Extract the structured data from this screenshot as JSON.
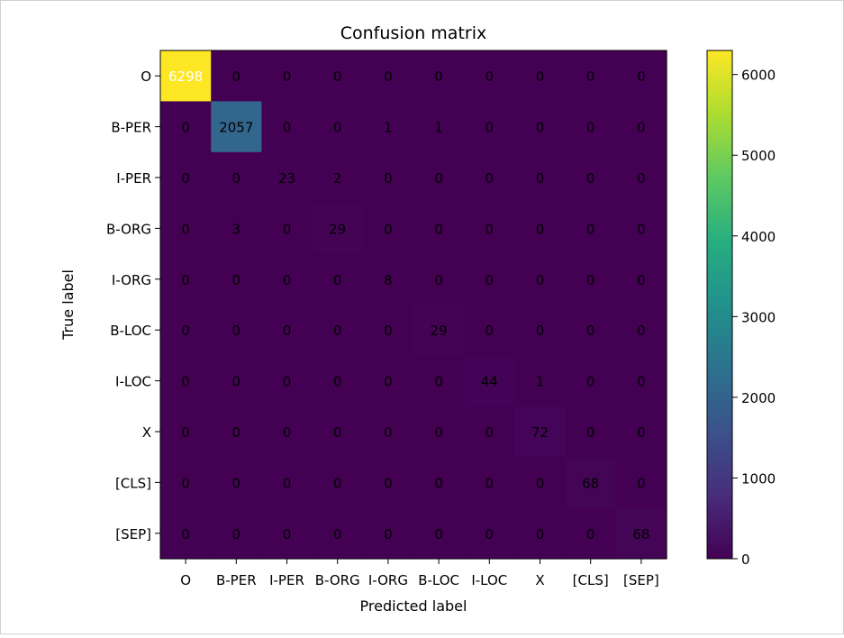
{
  "chart_data": {
    "type": "heatmap",
    "title": "Confusion matrix",
    "xlabel": "Predicted label",
    "ylabel": "True label",
    "labels": [
      "O",
      "B-PER",
      "I-PER",
      "B-ORG",
      "I-ORG",
      "B-LOC",
      "I-LOC",
      "X",
      "[CLS]",
      "[SEP]"
    ],
    "matrix": [
      [
        6298,
        0,
        0,
        0,
        0,
        0,
        0,
        0,
        0,
        0
      ],
      [
        0,
        2057,
        0,
        0,
        1,
        1,
        0,
        0,
        0,
        0
      ],
      [
        0,
        0,
        23,
        2,
        0,
        0,
        0,
        0,
        0,
        0
      ],
      [
        0,
        3,
        0,
        29,
        0,
        0,
        0,
        0,
        0,
        0
      ],
      [
        0,
        0,
        0,
        0,
        8,
        0,
        0,
        0,
        0,
        0
      ],
      [
        0,
        0,
        0,
        0,
        0,
        29,
        0,
        0,
        0,
        0
      ],
      [
        0,
        0,
        0,
        0,
        0,
        0,
        44,
        1,
        0,
        0
      ],
      [
        0,
        0,
        0,
        0,
        0,
        0,
        0,
        72,
        0,
        0
      ],
      [
        0,
        0,
        0,
        0,
        0,
        0,
        0,
        0,
        68,
        0
      ],
      [
        0,
        0,
        0,
        0,
        0,
        0,
        0,
        0,
        0,
        68
      ]
    ],
    "colormap": "viridis",
    "colorbar": {
      "range": [
        0,
        6298
      ],
      "ticks": [
        0,
        1000,
        2000,
        3000,
        4000,
        5000,
        6000
      ]
    },
    "text_colors": {
      "high": "#ffffff",
      "low": "#000000"
    },
    "grid": false
  }
}
